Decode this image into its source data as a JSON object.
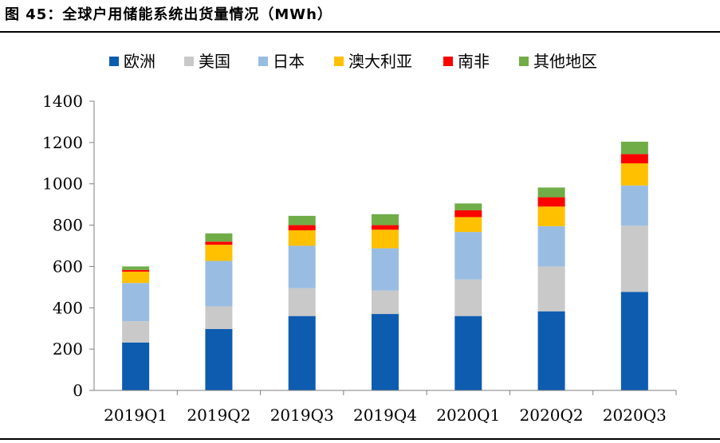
{
  "caption": "图 45：全球户用储能系统出货量情况（MWh）",
  "chart_data": {
    "type": "bar",
    "stacked": true,
    "categories": [
      "2019Q1",
      "2019Q2",
      "2019Q3",
      "2019Q4",
      "2020Q1",
      "2020Q2",
      "2020Q3"
    ],
    "series": [
      {
        "name": "欧洲",
        "color": "#0d5cb0",
        "values": [
          232,
          297,
          360,
          370,
          360,
          383,
          477
        ]
      },
      {
        "name": "美国",
        "color": "#c9c9c9",
        "values": [
          103,
          110,
          135,
          113,
          177,
          217,
          320
        ]
      },
      {
        "name": "日本",
        "color": "#99bde2",
        "values": [
          185,
          220,
          205,
          205,
          230,
          195,
          195
        ]
      },
      {
        "name": "澳大利亚",
        "color": "#ffc000",
        "values": [
          55,
          78,
          75,
          90,
          72,
          95,
          107
        ]
      },
      {
        "name": "南非",
        "color": "#ff0000",
        "values": [
          8,
          15,
          25,
          22,
          33,
          45,
          45
        ]
      },
      {
        "name": "其他地区",
        "color": "#70ad47",
        "values": [
          17,
          40,
          45,
          53,
          33,
          47,
          60
        ]
      }
    ],
    "title": "",
    "xlabel": "",
    "ylabel": "",
    "ylim": [
      0,
      1400
    ],
    "yticks": [
      0,
      200,
      400,
      600,
      800,
      1000,
      1200,
      1400
    ],
    "grid": false,
    "legend": "top"
  }
}
